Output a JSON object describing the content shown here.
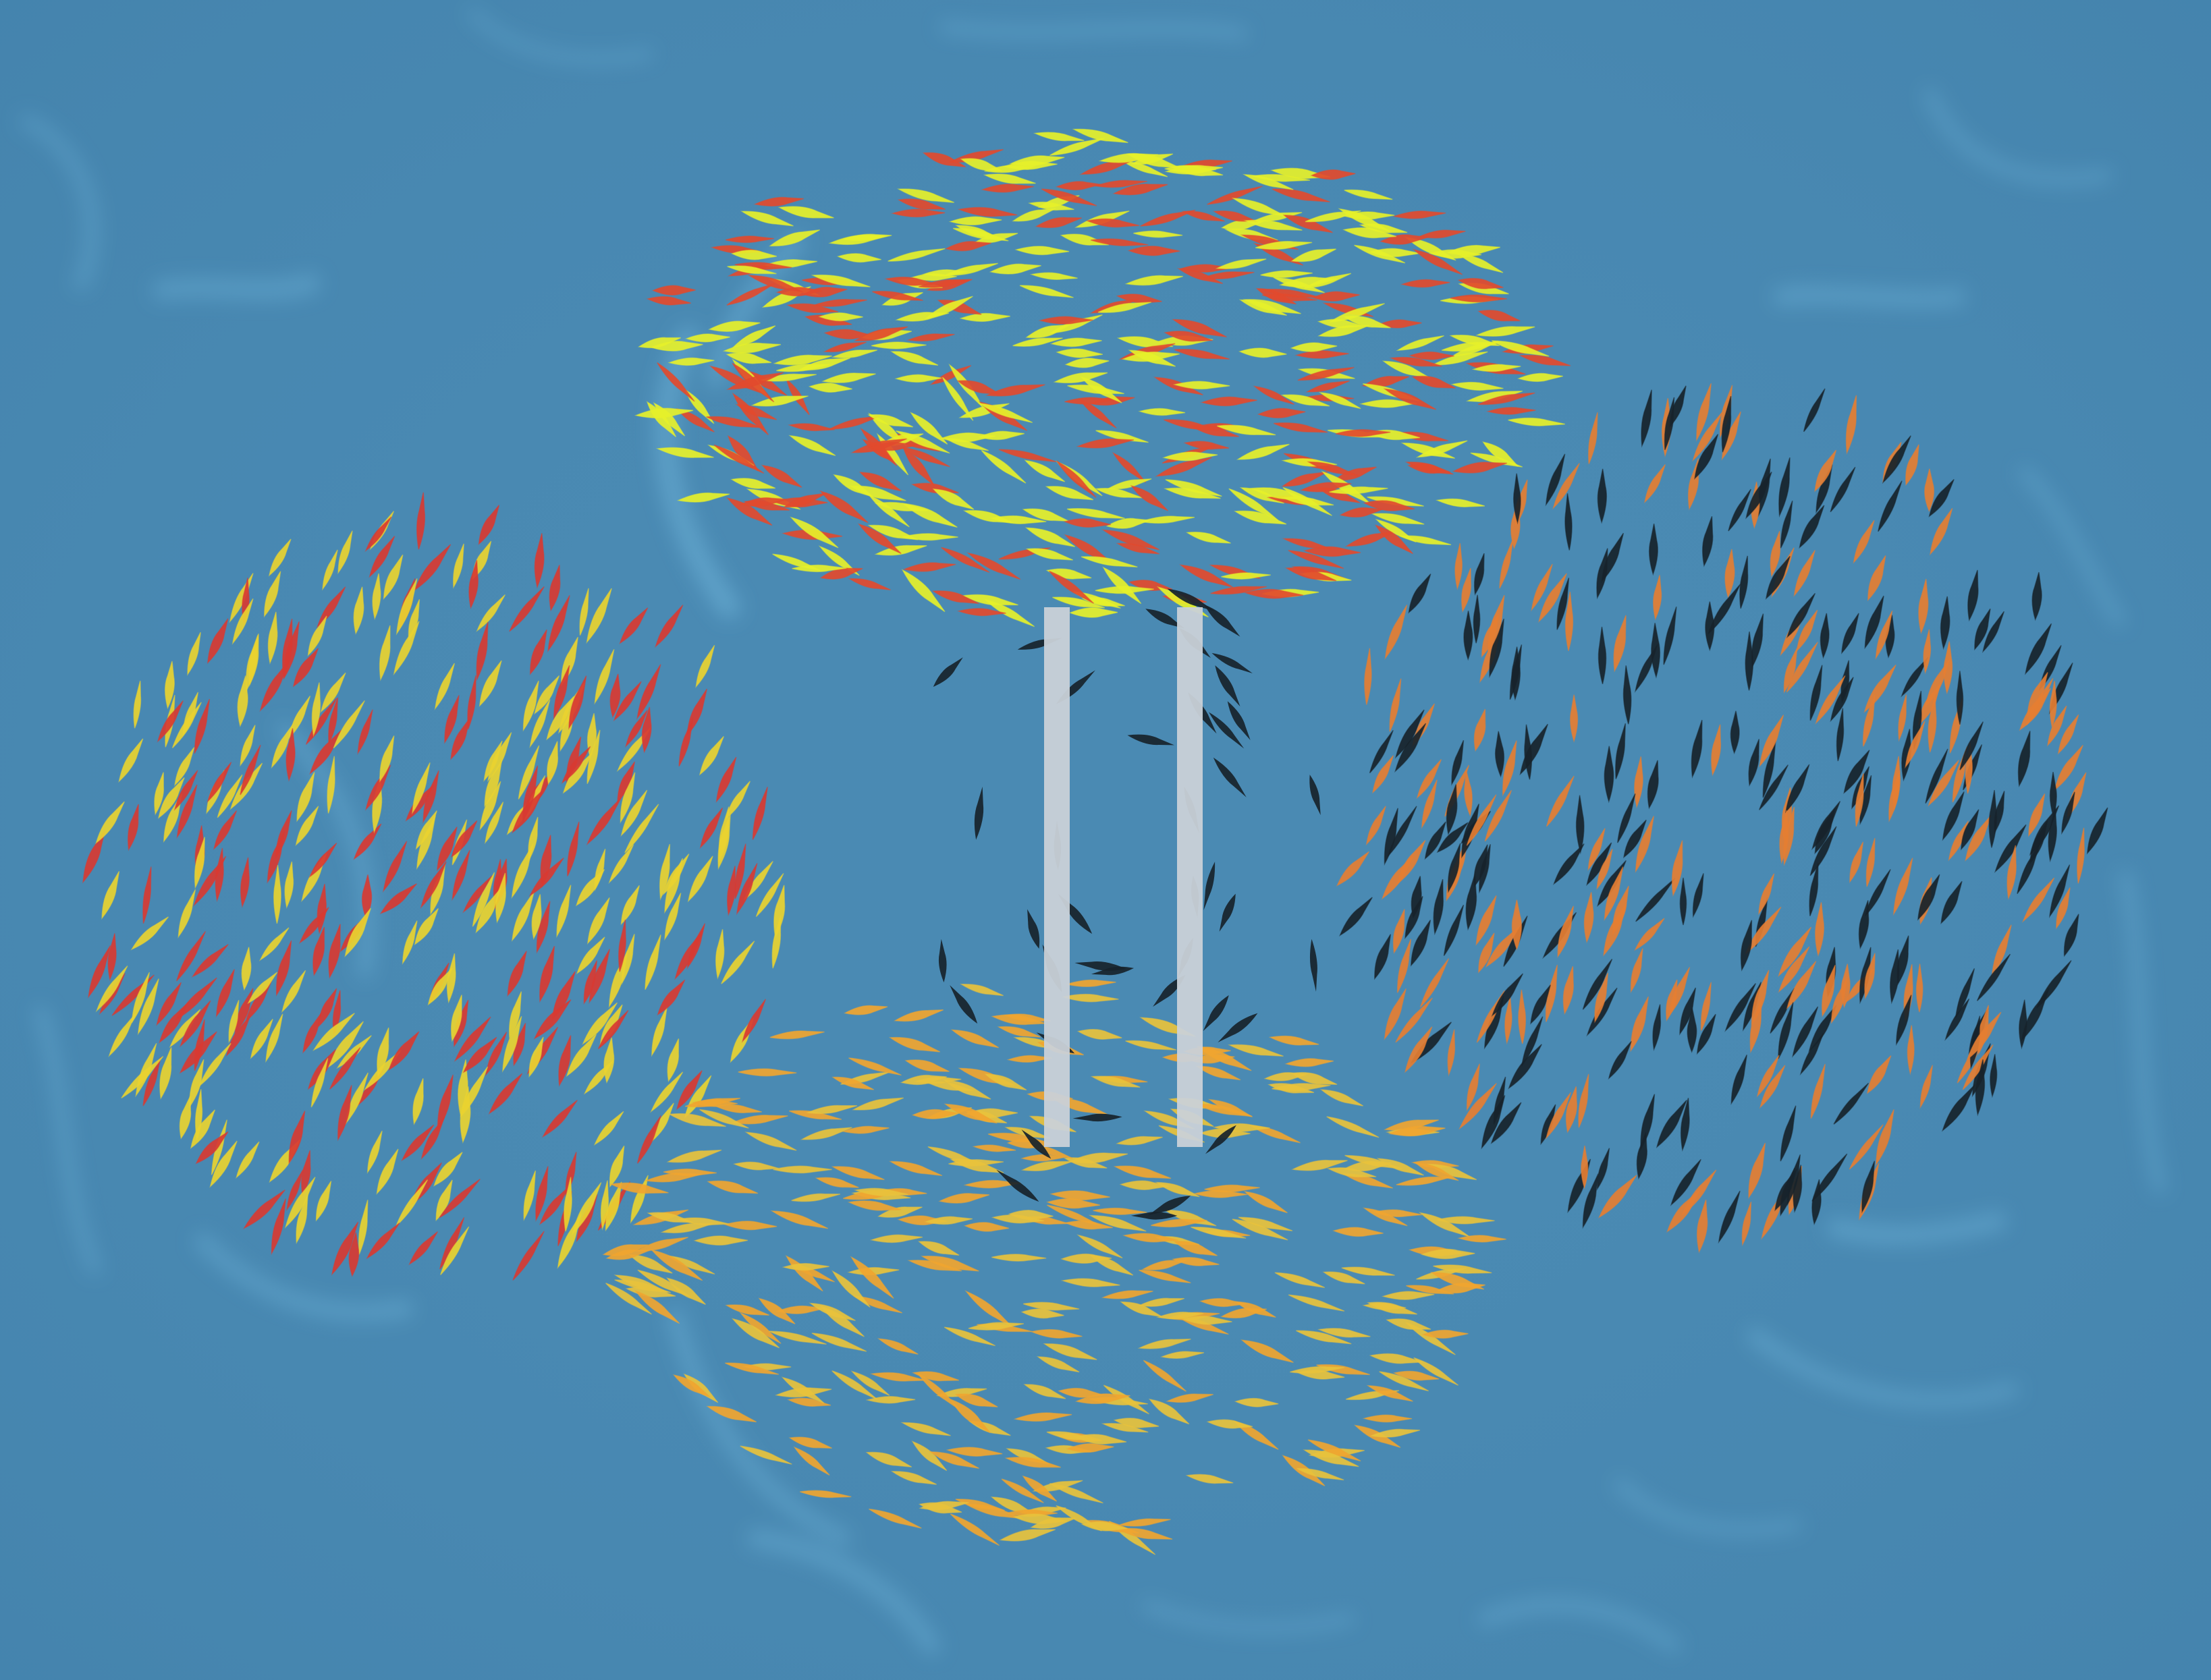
{
  "scene": {
    "water_color": "#4a8ab3",
    "caustic_color": "#7ec8ea",
    "state": "paused"
  },
  "schools": [
    {
      "name": "top-school",
      "heading": "horizontal",
      "colors": [
        "#e6f02a",
        "#e24a2e"
      ],
      "count": 420
    },
    {
      "name": "left-school",
      "heading": "vertical",
      "colors": [
        "#e9d330",
        "#d83a32"
      ],
      "count": 360
    },
    {
      "name": "right-school",
      "heading": "vertical",
      "colors": [
        "#17232b",
        "#e57e32"
      ],
      "count": 380
    },
    {
      "name": "bottom-school",
      "heading": "horizontal",
      "colors": [
        "#f0a530",
        "#e8c23c"
      ],
      "count": 330
    }
  ],
  "pause_icon": {
    "icon": "pause-icon",
    "color": "#c9d1d8"
  }
}
